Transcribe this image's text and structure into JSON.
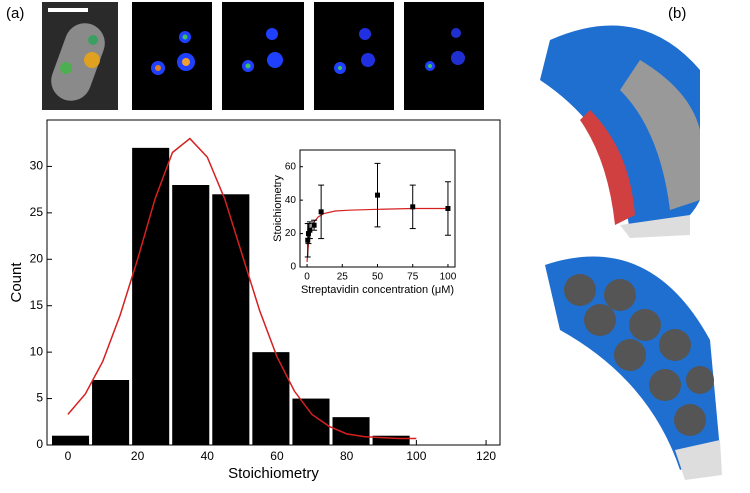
{
  "panels": [
    "(a)",
    "(b)"
  ],
  "chart_data": [
    {
      "type": "histogram",
      "x_label": "Stoichiometry",
      "y_label": "Count",
      "bins": [
        -5,
        6.5,
        18,
        29.5,
        41,
        52.5,
        64,
        75.5,
        87,
        98.5
      ],
      "counts": [
        1,
        7,
        32,
        28,
        27,
        10,
        5,
        3,
        1
      ],
      "color": "#000000",
      "curve": {
        "color": "#d62020",
        "x": [
          0,
          5,
          10,
          15,
          20,
          25,
          30,
          35,
          40,
          45,
          50,
          55,
          60,
          65,
          70,
          75,
          80,
          85,
          90,
          95,
          100
        ],
        "y": [
          3.3,
          5.5,
          9,
          14,
          20,
          26.5,
          31.5,
          33,
          31,
          26.5,
          20.5,
          14.5,
          9.5,
          5.8,
          3.3,
          2,
          1.2,
          0.9,
          0.8,
          0.7,
          0.7
        ]
      },
      "xlim": [
        -6,
        124
      ],
      "ylim": [
        0,
        35
      ],
      "xticks": [
        0,
        20,
        40,
        60,
        80,
        100,
        120
      ],
      "yticks": [
        0,
        5,
        10,
        15,
        20,
        25,
        30
      ]
    },
    {
      "type": "scatter",
      "x_label": "Streptavidin concentration (μM)",
      "y_label": "Stoichiometry",
      "x": [
        0.5,
        1,
        2,
        5,
        10,
        50,
        75,
        100
      ],
      "values": [
        16,
        20,
        22,
        25,
        33,
        43,
        36,
        35
      ],
      "errors": [
        10,
        6,
        5,
        3,
        16,
        19,
        13,
        16
      ],
      "color": "#000000",
      "curve": {
        "color": "#d62020",
        "x": [
          0,
          1,
          2,
          3,
          5,
          8,
          12,
          20,
          30,
          50,
          75,
          100
        ],
        "y": [
          3,
          14,
          20,
          23,
          27,
          30,
          32,
          33.5,
          34,
          34.5,
          35,
          35
        ]
      },
      "xlim": [
        -5,
        105
      ],
      "ylim": [
        0,
        70
      ],
      "xticks": [
        0,
        25,
        50,
        75,
        100
      ],
      "yticks": [
        0,
        20,
        40,
        60
      ]
    }
  ]
}
